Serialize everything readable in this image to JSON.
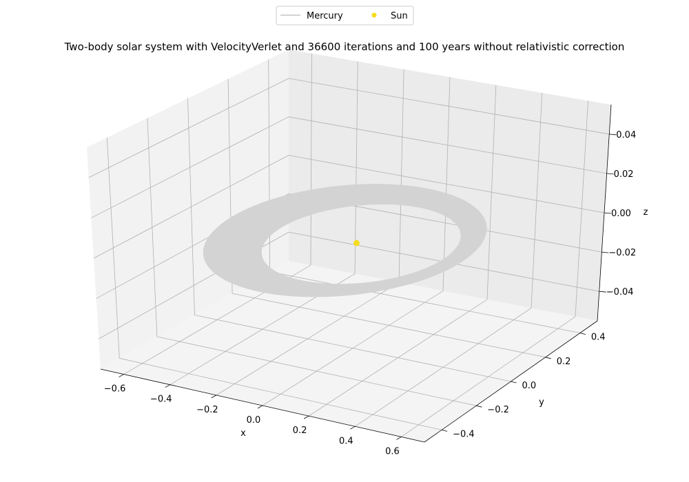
{
  "chart_data": {
    "type": "line",
    "projection": "3d",
    "title": "Two-body solar system with VelocityVerlet and 36600 iterations and 100 years without relativistic correction",
    "xlabel": "x",
    "ylabel": "y",
    "zlabel": "z",
    "x_ticks": [
      "−0.6",
      "−0.4",
      "−0.2",
      "0.0",
      "0.2",
      "0.4",
      "0.6"
    ],
    "y_ticks": [
      "−0.4",
      "−0.2",
      "0.0",
      "0.2",
      "0.4"
    ],
    "z_ticks": [
      "−0.04",
      "−0.02",
      "0.00",
      "0.02",
      "0.04"
    ],
    "xlim": [
      -0.7,
      0.7
    ],
    "ylim": [
      -0.5,
      0.5
    ],
    "zlim": [
      -0.055,
      0.055
    ],
    "grid": true,
    "legend_position": "top-center",
    "series": [
      {
        "name": "Mercury",
        "kind": "orbit",
        "color": "#d3d3d3",
        "semi_major_axis": 0.387,
        "eccentricity": 0.206,
        "orbits": 415,
        "z": 0.0
      },
      {
        "name": "Sun",
        "kind": "point",
        "color": "#f5dc1e",
        "x": 0.0,
        "y": 0.0,
        "z": 0.0
      }
    ]
  }
}
